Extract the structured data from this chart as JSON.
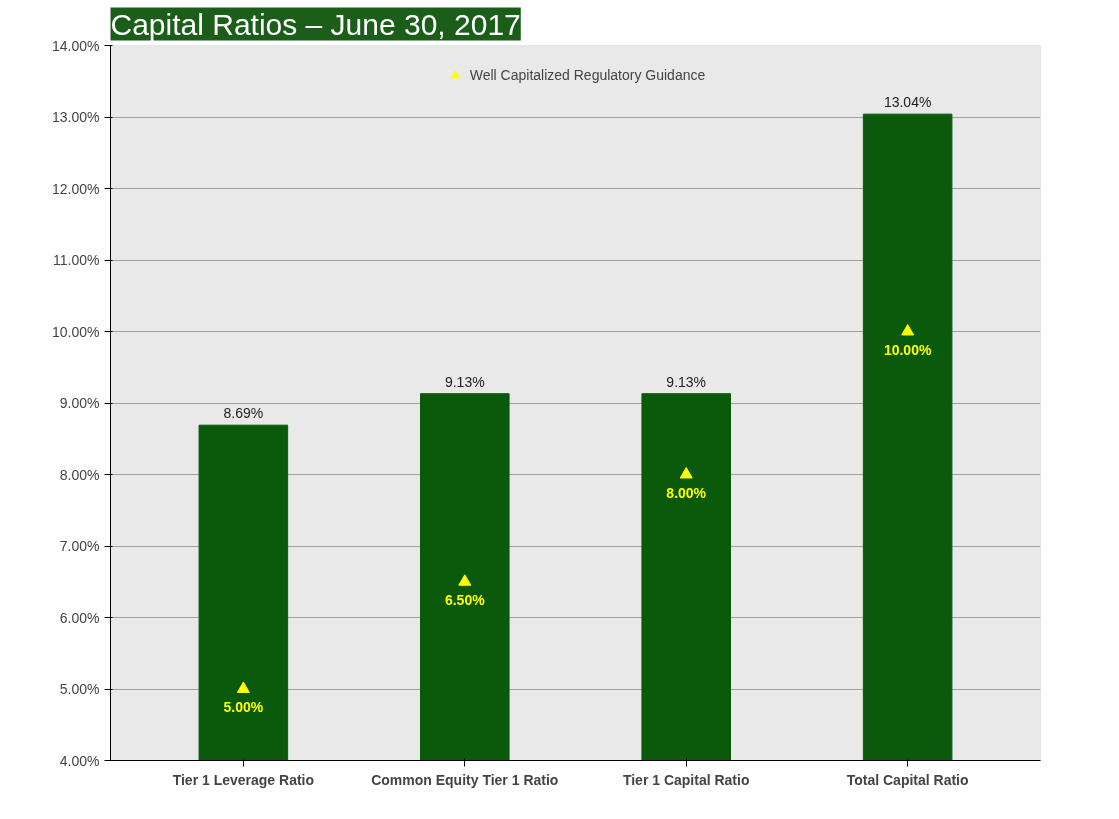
{
  "chart_data": {
    "type": "bar",
    "title": "Capital Ratios – June 30, 2017",
    "categories": [
      "Tier 1 Leverage Ratio",
      "Common Equity Tier 1 Ratio",
      "Tier 1 Capital Ratio",
      "Total Capital Ratio"
    ],
    "series": [
      {
        "color": "#0b5a0b",
        "values": [
          8.69,
          9.13,
          9.13,
          13.04
        ],
        "value_labels": [
          "8.69%",
          "9.13%",
          "9.13%",
          "13.04%"
        ]
      },
      {
        "type": "scatter",
        "name": "Well Capitalized Regulatory Guidance",
        "color": "#ffff00",
        "marker": "triangle",
        "values": [
          5.0,
          6.5,
          8.0,
          10.0
        ],
        "value_labels": [
          "5.00%",
          "6.50%",
          "8.00%",
          "10.00%"
        ]
      }
    ],
    "ylim": [
      4,
      14
    ],
    "yticks": [
      {
        "value": 4,
        "label": "4.00%"
      },
      {
        "value": 5,
        "label": "5.00%"
      },
      {
        "value": 6,
        "label": "6.00%"
      },
      {
        "value": 7,
        "label": "7.00%"
      },
      {
        "value": 8,
        "label": "8.00%"
      },
      {
        "value": 9,
        "label": "9.00%"
      },
      {
        "value": 10,
        "label": "10.00%"
      },
      {
        "value": 11,
        "label": "11.00%"
      },
      {
        "value": 12,
        "label": "12.00%"
      },
      {
        "value": 13,
        "label": "13.00%"
      },
      {
        "value": 14,
        "label": "14.00%"
      }
    ],
    "grid": "y",
    "legend": "top"
  }
}
